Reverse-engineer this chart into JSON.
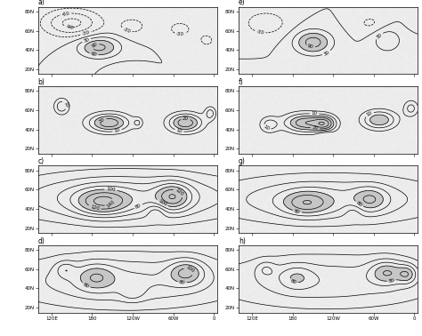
{
  "panels": [
    "a)",
    "b)",
    "c)",
    "d)",
    "e)",
    "f)",
    "g)",
    "h)"
  ],
  "lon_ticks": [
    "120E",
    "180",
    "120W",
    "60W",
    "0"
  ],
  "lon_values": [
    120,
    180,
    240,
    300,
    360
  ],
  "lat_ticks": [
    "20N",
    "40N",
    "60N",
    "80N"
  ],
  "lat_values": [
    20,
    40,
    60,
    80
  ],
  "xlim": [
    100,
    365
  ],
  "ylim": [
    15,
    85
  ]
}
